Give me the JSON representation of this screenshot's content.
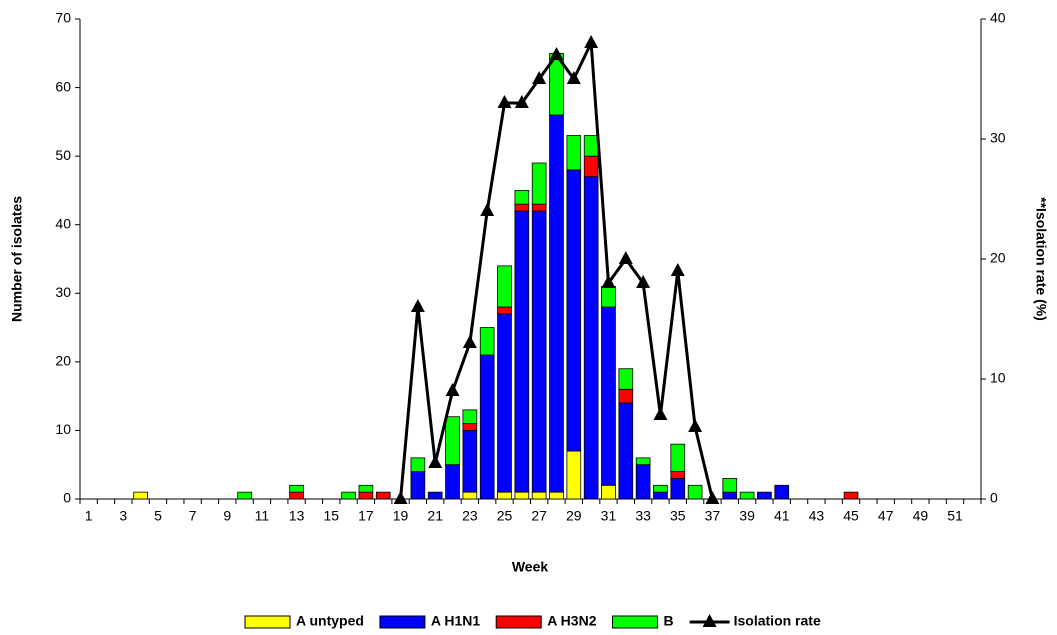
{
  "chart_data": {
    "type": "bar+line",
    "xlabel": "Week",
    "ylabel": "Number of isolates",
    "y2label": "**Isolation rate (%)",
    "categories": [
      1,
      null,
      3,
      null,
      5,
      null,
      7,
      null,
      9,
      null,
      11,
      null,
      13,
      null,
      15,
      null,
      17,
      null,
      19,
      null,
      21,
      null,
      23,
      null,
      25,
      null,
      27,
      null,
      29,
      null,
      31,
      null,
      33,
      null,
      35,
      null,
      37,
      null,
      39,
      null,
      41,
      null,
      43,
      null,
      45,
      null,
      47,
      null,
      49,
      null,
      51,
      null
    ],
    "ylim": [
      0,
      70
    ],
    "yticks": [
      0,
      10,
      20,
      30,
      40,
      50,
      60,
      70
    ],
    "y2lim": [
      0,
      40
    ],
    "y2ticks": [
      0,
      10,
      20,
      30,
      40
    ],
    "series": [
      {
        "name": "A untyped",
        "color": "#ffff00",
        "values": [
          0,
          0,
          0,
          1,
          0,
          0,
          0,
          0,
          0,
          0,
          0,
          0,
          0,
          0,
          0,
          0,
          0,
          0,
          0,
          0,
          0,
          0,
          1,
          0,
          1,
          1,
          1,
          1,
          7,
          0,
          2,
          0,
          0,
          0,
          0,
          0,
          0,
          0,
          0,
          0,
          0,
          0,
          0,
          0,
          0,
          0,
          0,
          0,
          0,
          0,
          0,
          0
        ]
      },
      {
        "name": "A H1N1",
        "color": "#0000ff",
        "values": [
          0,
          0,
          0,
          0,
          0,
          0,
          0,
          0,
          0,
          0,
          0,
          0,
          0,
          0,
          0,
          0,
          0,
          0,
          0,
          4,
          1,
          5,
          9,
          21,
          26,
          41,
          41,
          55,
          41,
          47,
          26,
          14,
          5,
          1,
          3,
          0,
          0,
          1,
          0,
          1,
          2,
          0,
          0,
          0,
          0,
          0,
          0,
          0,
          0,
          0,
          0,
          0
        ]
      },
      {
        "name": "A H3N2",
        "color": "#ff0000",
        "values": [
          0,
          0,
          0,
          0,
          0,
          0,
          0,
          0,
          0,
          0,
          0,
          0,
          1,
          0,
          0,
          0,
          1,
          1,
          0,
          0,
          0,
          0,
          1,
          0,
          1,
          1,
          1,
          0,
          0,
          3,
          0,
          2,
          0,
          0,
          1,
          0,
          0,
          0,
          0,
          0,
          0,
          0,
          0,
          0,
          1,
          0,
          0,
          0,
          0,
          0,
          0,
          0
        ]
      },
      {
        "name": "B",
        "color": "#00ff00",
        "values": [
          0,
          0,
          0,
          0,
          0,
          0,
          0,
          0,
          0,
          1,
          0,
          0,
          1,
          0,
          0,
          1,
          1,
          0,
          0,
          2,
          0,
          7,
          2,
          4,
          6,
          2,
          6,
          9,
          5,
          3,
          3,
          3,
          1,
          1,
          4,
          2,
          0,
          2,
          1,
          0,
          0,
          0,
          0,
          0,
          0,
          0,
          0,
          0,
          0,
          0,
          0,
          0
        ]
      },
      {
        "name": "Isolation rate",
        "color": "#000000",
        "axis": "y2",
        "values": [
          null,
          null,
          null,
          null,
          null,
          null,
          null,
          null,
          null,
          null,
          null,
          null,
          null,
          null,
          null,
          null,
          null,
          null,
          0,
          16,
          3,
          9,
          13,
          24,
          33,
          33,
          35,
          37,
          35,
          38,
          18,
          20,
          18,
          7,
          19,
          6,
          0,
          null,
          null,
          null,
          null,
          null,
          null,
          null,
          null,
          null,
          null,
          null,
          null,
          null,
          null,
          null
        ]
      }
    ]
  }
}
